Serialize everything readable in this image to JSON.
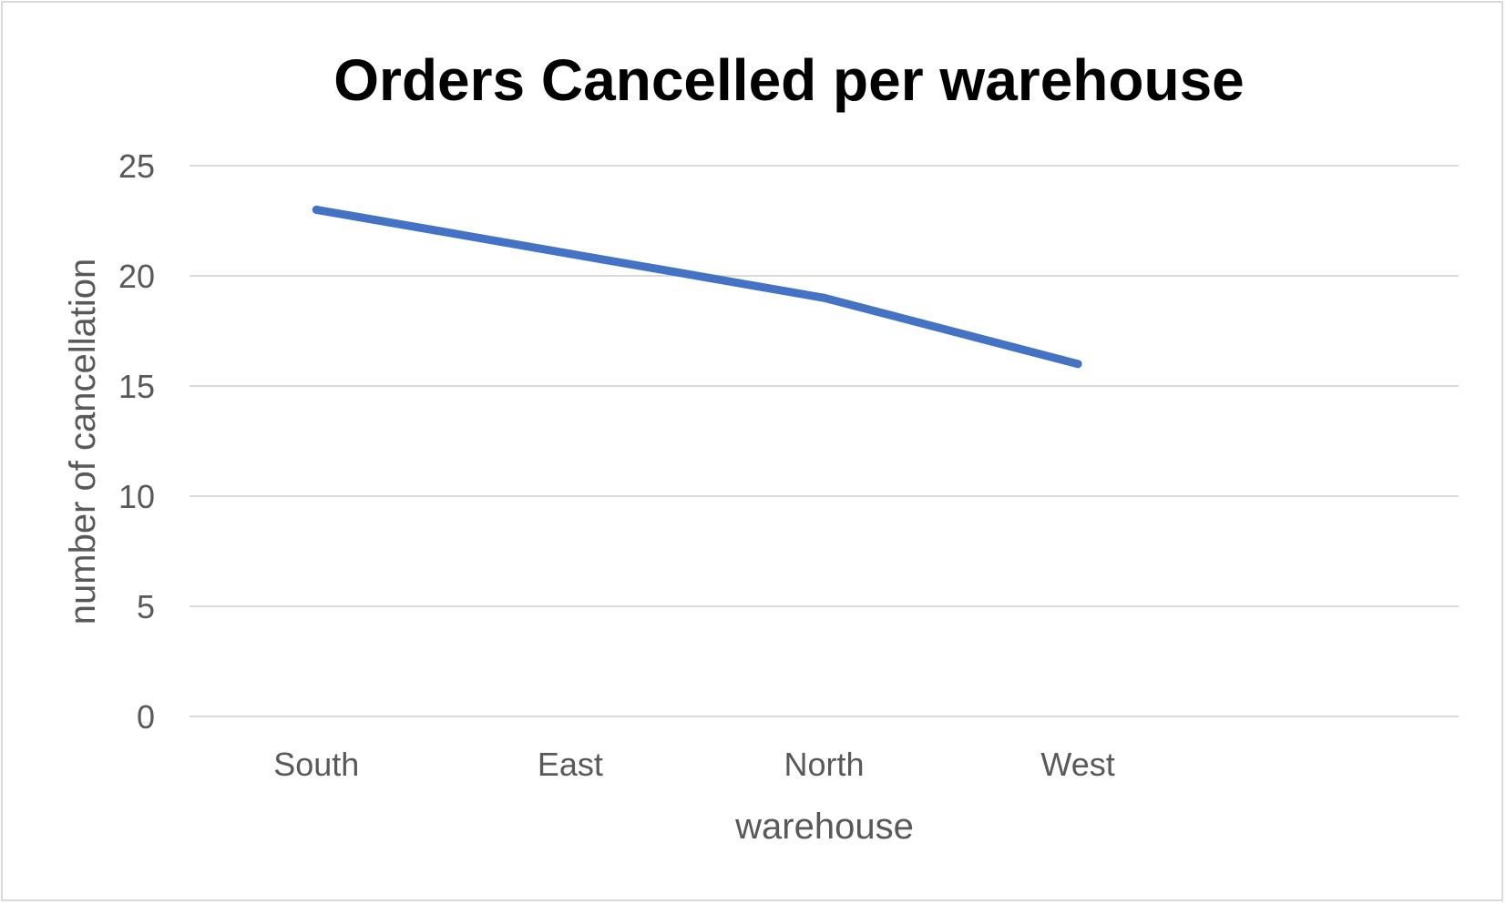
{
  "chart_data": {
    "type": "line",
    "title": "Orders Cancelled per warehouse",
    "xlabel": "warehouse",
    "ylabel": "number of cancellation",
    "categories": [
      "South",
      "East",
      "North",
      "West"
    ],
    "series": [
      {
        "name": "number of cancellation",
        "values": [
          23,
          21,
          19,
          16
        ],
        "color": "#4472c4"
      }
    ],
    "ylim": [
      0,
      25
    ],
    "yticks": [
      0,
      5,
      10,
      15,
      20,
      25
    ],
    "grid": true,
    "gridColor": "#d9d9d9",
    "legend": "none"
  }
}
